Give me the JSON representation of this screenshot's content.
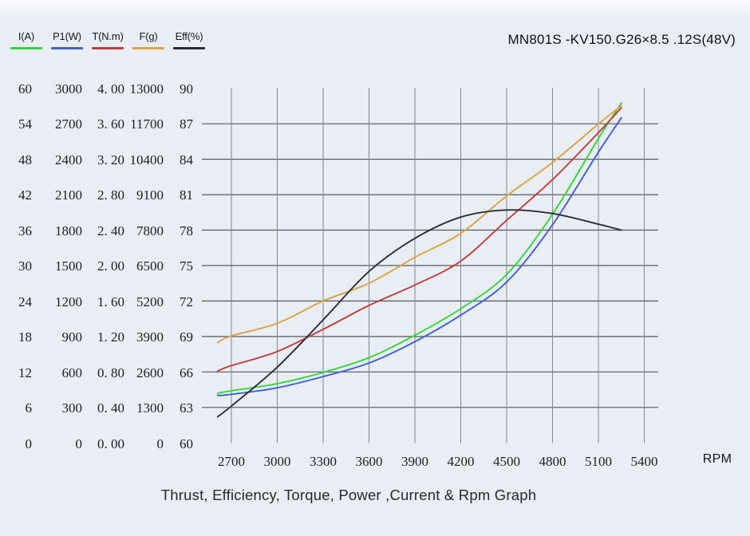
{
  "header": {
    "title": "MN801S -KV150.G26×8.5 .12S(48V)"
  },
  "caption": "Thrust, Efficiency, Torque, Power ,Current & Rpm Graph",
  "legend": {
    "items": [
      {
        "label": "I(A)",
        "color": "#30d838"
      },
      {
        "label": "P1(W)",
        "color": "#4160d2"
      },
      {
        "label": "T(N.m)",
        "color": "#c23c3c"
      },
      {
        "label": "F(g)",
        "color": "#dba43f"
      },
      {
        "label": "Eff(%)",
        "color": "#2b2e33"
      }
    ]
  },
  "x_axis": {
    "unit_label": "RPM",
    "ticks": [
      "2700",
      "3000",
      "3300",
      "3600",
      "3900",
      "4200",
      "4500",
      "4800",
      "5100",
      "5400"
    ]
  },
  "y_axis_columns": [
    {
      "name": "I(A)",
      "labels": [
        "60",
        "54",
        "48",
        "42",
        "36",
        "30",
        "24",
        "18",
        "12",
        "6",
        "0"
      ]
    },
    {
      "name": "P1(W)",
      "labels": [
        "3000",
        "2700",
        "2400",
        "2100",
        "1800",
        "1500",
        "1200",
        "900",
        "600",
        "300",
        "0"
      ]
    },
    {
      "name": "T(N.m)",
      "labels": [
        "4. 00",
        "3. 60",
        "3. 20",
        "2. 80",
        "2. 40",
        "2. 00",
        "1. 60",
        "1. 20",
        "0. 80",
        "0. 40",
        "0. 00"
      ]
    },
    {
      "name": "F(g)",
      "labels": [
        "13000",
        "11700",
        "10400",
        "9100",
        "7800",
        "6500",
        "5200",
        "3900",
        "2600",
        "1300",
        "0"
      ]
    },
    {
      "name": "Eff(%)",
      "labels": [
        "90",
        "87",
        "84",
        "81",
        "78",
        "75",
        "72",
        "69",
        "66",
        "63",
        "60"
      ]
    }
  ],
  "chart_data": {
    "type": "line",
    "xlabel": "RPM",
    "x_ticks": [
      2700,
      3000,
      3300,
      3600,
      3900,
      4200,
      4500,
      4800,
      5100,
      5400
    ],
    "x_plot_range": [
      2507,
      5491
    ],
    "x": [
      2610,
      2700,
      3000,
      3300,
      3600,
      3900,
      4200,
      4500,
      4800,
      5100,
      5250
    ],
    "series": [
      {
        "name": "I(A)",
        "color": "#30d838",
        "axis_min": 0,
        "axis_max": 60,
        "values": [
          8.4,
          8.8,
          10.0,
          11.9,
          14.4,
          18.2,
          22.7,
          28.5,
          38.7,
          51.5,
          57.5
        ]
      },
      {
        "name": "P1(W)",
        "color": "#4160d2",
        "axis_min": 0,
        "axis_max": 3000,
        "values": [
          400,
          410,
          465,
          560,
          675,
          855,
          1080,
          1360,
          1845,
          2460,
          2750
        ]
      },
      {
        "name": "T(N.m)",
        "color": "#c23c3c",
        "axis_min": 0,
        "axis_max": 4.0,
        "values": [
          0.81,
          0.87,
          1.03,
          1.28,
          1.55,
          1.78,
          2.05,
          2.51,
          2.97,
          3.5,
          3.78
        ]
      },
      {
        "name": "F(g)",
        "color": "#dba43f",
        "axis_min": 0,
        "axis_max": 13000,
        "values": [
          3680,
          3920,
          4380,
          5200,
          5850,
          6800,
          7680,
          9050,
          10280,
          11690,
          12360
        ]
      },
      {
        "name": "Eff(%)",
        "color": "#2b2e33",
        "axis_min": 60,
        "axis_max": 90,
        "values": [
          62.2,
          63.1,
          66.4,
          70.4,
          74.5,
          77.3,
          79.1,
          79.7,
          79.4,
          78.5,
          78.0
        ]
      }
    ],
    "grid": true,
    "legend_position": "top-left",
    "style": {
      "background": "#e9edf4",
      "grid_h_color": "#55585e",
      "grid_v_color": "#84878d"
    }
  }
}
